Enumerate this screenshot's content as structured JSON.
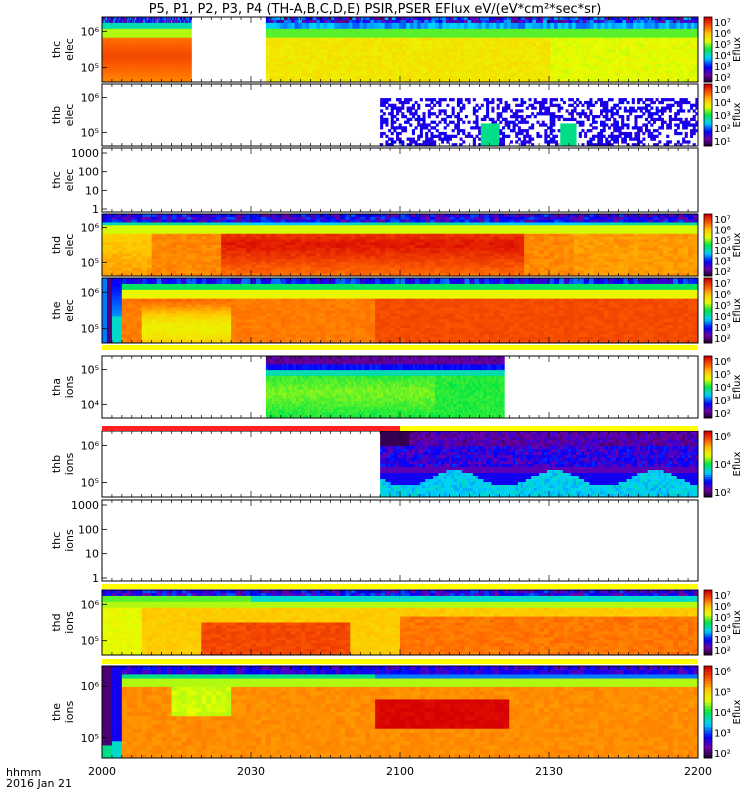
{
  "title": "P5, P1, P2, P3, P4 (TH-A,B,C,D,E) PSIR,PSER EFlux eV/(eV*cm²*sec*sr)",
  "footer": {
    "label": "hhmm",
    "date": "2016 Jan 21"
  },
  "chart_data": {
    "type": "heatmap",
    "title": "P5, P1, P2, P3, P4 (TH-A,B,C,D,E) PSIR,PSER EFlux eV/(eV*cm²*sec*sr)",
    "xlabel": "hhmm",
    "x_range_minutes": [
      0,
      120
    ],
    "x_ticks": [
      {
        "minute": 0,
        "label": "2000"
      },
      {
        "minute": 30,
        "label": "2030"
      },
      {
        "minute": 60,
        "label": "2100"
      },
      {
        "minute": 90,
        "label": "2130"
      },
      {
        "minute": 120,
        "label": "2200"
      }
    ],
    "colorbar_label": "Eflux",
    "panels": [
      {
        "probe": "thc",
        "species": "elec",
        "data_minutes": [
          [
            0,
            18
          ],
          [
            33,
            120
          ]
        ],
        "yticks": [
          "10⁵",
          "10⁶"
        ],
        "cbar": true,
        "cbar_ticks": [
          "10⁷",
          "10⁶",
          "10⁵",
          "10⁴",
          "10³",
          "10²"
        ],
        "profile": "elec_thc",
        "status_bar": null
      },
      {
        "probe": "thb",
        "species": "elec",
        "data_minutes": [
          [
            56,
            120
          ]
        ],
        "yticks": [
          "10⁵",
          "10⁶"
        ],
        "cbar": true,
        "cbar_ticks": [
          "10⁶",
          "10⁴",
          "10³",
          "10²",
          "10¹"
        ],
        "profile": "sparse",
        "status_bar": null
      },
      {
        "probe": "thc",
        "species": "elec",
        "data_minutes": [],
        "yticks": [
          "1",
          "10",
          "100",
          "1000"
        ],
        "cbar": false,
        "cbar_ticks": [],
        "profile": "none",
        "status_bar": null
      },
      {
        "probe": "thd",
        "species": "elec",
        "data_minutes": [
          [
            0,
            120
          ]
        ],
        "yticks": [
          "10⁵",
          "10⁶"
        ],
        "cbar": true,
        "cbar_ticks": [
          "10⁷",
          "10⁶",
          "10⁵",
          "10⁴",
          "10³",
          "10²"
        ],
        "profile": "elec_thd",
        "status_bar": null
      },
      {
        "probe": "the",
        "species": "elec",
        "data_minutes": [
          [
            0,
            120
          ]
        ],
        "yticks": [
          "10⁵",
          "10⁶"
        ],
        "cbar": true,
        "cbar_ticks": [
          "10⁷",
          "10⁶",
          "10⁵",
          "10⁴",
          "10³",
          "10²"
        ],
        "profile": "elec_the",
        "status_bar": {
          "segments": [
            {
              "from": 0,
              "to": 120,
              "color": "#ffff00"
            }
          ]
        }
      },
      {
        "probe": "tha",
        "species": "ions",
        "data_minutes": [
          [
            33,
            81
          ]
        ],
        "yticks": [
          "10⁴",
          "10⁵"
        ],
        "cbar": true,
        "cbar_ticks": [
          "10⁶",
          "10⁵",
          "10⁴",
          "10³",
          "10²"
        ],
        "profile": "ion_tha",
        "status_bar": null
      },
      {
        "probe": "thb",
        "species": "ions",
        "data_minutes": [
          [
            56,
            120
          ]
        ],
        "yticks": [
          "10⁵",
          "10⁶"
        ],
        "cbar": true,
        "cbar_ticks": [
          "10⁶",
          "10⁴",
          "10²"
        ],
        "profile": "ion_thb",
        "status_bar": {
          "segments": [
            {
              "from": 0,
              "to": 60,
              "color": "#ff2020"
            },
            {
              "from": 60,
              "to": 120,
              "color": "#ffff00"
            }
          ]
        }
      },
      {
        "probe": "thc",
        "species": "ions",
        "data_minutes": [],
        "yticks": [
          "1",
          "10",
          "100",
          "1000"
        ],
        "cbar": false,
        "cbar_ticks": [],
        "profile": "none",
        "status_bar": null
      },
      {
        "probe": "thd",
        "species": "ions",
        "data_minutes": [
          [
            0,
            120
          ]
        ],
        "yticks": [
          "10⁵",
          "10⁶"
        ],
        "cbar": true,
        "cbar_ticks": [
          "10⁷",
          "10⁶",
          "10⁵",
          "10⁴",
          "10³",
          "10²"
        ],
        "profile": "ion_thd",
        "status_bar": {
          "segments": [
            {
              "from": 0,
              "to": 120,
              "color": "#ffff00"
            }
          ]
        }
      },
      {
        "probe": "the",
        "species": "ions",
        "data_minutes": [
          [
            0,
            120
          ]
        ],
        "yticks": [
          "10⁵",
          "10⁶"
        ],
        "cbar": true,
        "cbar_ticks": [
          "10⁶",
          "10⁵",
          "10⁴",
          "10³",
          "10²"
        ],
        "profile": "ion_the",
        "status_bar": {
          "segments": [
            {
              "from": 0,
              "to": 120,
              "color": "#ffff00"
            }
          ]
        }
      }
    ]
  }
}
